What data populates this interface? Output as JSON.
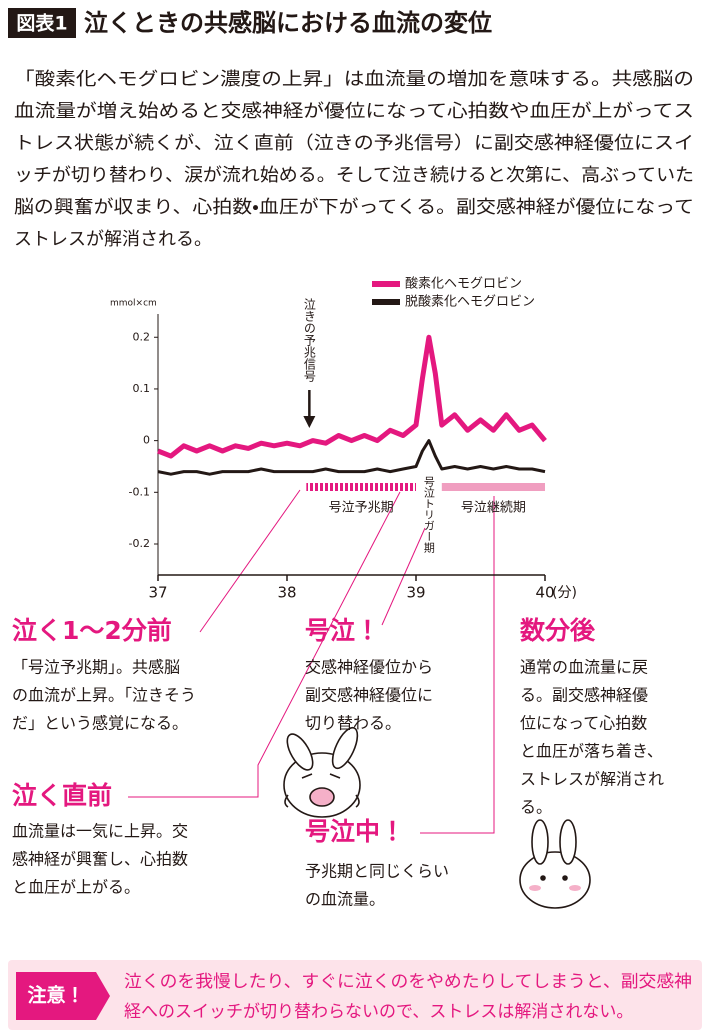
{
  "header": {
    "badge": "図表1",
    "title": "泣くときの共感脳における血流の変位"
  },
  "intro": [
    "「酸素化ヘモグロビン濃度の上昇」は血流量の増加を意味する。共感脳の",
    "血流量が増え始めると交感神経が優位になって心拍数や血圧が上がってス",
    "トレス状態が続くが、泣く直前（泣きの予兆信号）に副交感神経優位にスイ",
    "ッチが切り替わり、涙が流れ始める。そして泣き続けると次第に、高ぶっていた",
    "脳の興奮が収まり、心拍数・血圧が下がってくる。副交感神経が優位になって",
    "ストレスが解消される。"
  ],
  "chart_data": {
    "type": "line",
    "y_label": "mmol×cm",
    "x_label": "(分)",
    "x": [
      37.0,
      37.1,
      37.2,
      37.3,
      37.4,
      37.5,
      37.6,
      37.7,
      37.8,
      37.9,
      38.0,
      38.1,
      38.2,
      38.3,
      38.4,
      38.5,
      38.6,
      38.7,
      38.8,
      38.9,
      39.0,
      39.05,
      39.1,
      39.15,
      39.2,
      39.3,
      39.4,
      39.5,
      39.6,
      39.7,
      39.8,
      39.9,
      40.0
    ],
    "series": [
      {
        "name": "酸素化ヘモグロビン",
        "color": "#e4187f",
        "values": [
          -0.02,
          -0.03,
          -0.01,
          -0.02,
          -0.01,
          -0.02,
          -0.01,
          -0.015,
          -0.005,
          -0.01,
          -0.005,
          -0.01,
          0.0,
          -0.005,
          0.01,
          0.0,
          0.01,
          0.0,
          0.02,
          0.01,
          0.03,
          0.12,
          0.2,
          0.13,
          0.03,
          0.05,
          0.02,
          0.04,
          0.02,
          0.05,
          0.02,
          0.03,
          0.0
        ]
      },
      {
        "name": "脱酸素化ヘモグロビン",
        "color": "#231815",
        "values": [
          -0.06,
          -0.065,
          -0.06,
          -0.06,
          -0.065,
          -0.06,
          -0.06,
          -0.06,
          -0.055,
          -0.06,
          -0.06,
          -0.06,
          -0.06,
          -0.055,
          -0.06,
          -0.06,
          -0.06,
          -0.055,
          -0.06,
          -0.055,
          -0.05,
          -0.02,
          0.0,
          -0.03,
          -0.055,
          -0.05,
          -0.055,
          -0.05,
          -0.055,
          -0.05,
          -0.055,
          -0.055,
          -0.06
        ]
      }
    ],
    "xlim": [
      37,
      40
    ],
    "xticks": [
      37,
      38,
      39,
      40
    ],
    "ylim": [
      -0.26,
      0.245
    ],
    "yticks": [
      0.2,
      0.1,
      0,
      -0.1,
      -0.2
    ],
    "legend": "top-right",
    "periods": [
      {
        "label": "号泣予兆期",
        "x": [
          38.15,
          39.0
        ],
        "style": "striped"
      },
      {
        "label": "号泣継続期",
        "x": [
          39.2,
          40.0
        ],
        "style": "solid"
      }
    ],
    "annotations": [
      {
        "text": "泣きの予兆信号",
        "x": 38.15,
        "arrow": true
      },
      {
        "text": "号泣トリガー期",
        "x": 39.1,
        "arrow": false
      }
    ]
  },
  "sections": [
    {
      "heading": "泣く1〜2分前",
      "lines": [
        "「号泣予兆期」。共感脳",
        "の血流が上昇。「泣きそう",
        "だ」という感覚になる。"
      ]
    },
    {
      "heading": "号泣！",
      "lines": [
        "交感神経優位から",
        "副交感神経優位に",
        "切り替わる。"
      ]
    },
    {
      "heading": "数分後",
      "lines": [
        "通常の血流量に戻",
        "る。副交感神経優",
        "位になって心拍数",
        "と血圧が落ち着き、",
        "ストレスが解消され",
        "る。"
      ]
    },
    {
      "heading": "泣く直前",
      "lines": [
        "血流量は一気に上昇。交",
        "感神経が興奮し、心拍数",
        "と血圧が上がる。"
      ]
    },
    {
      "heading": "号泣中！",
      "lines": [
        "予兆期と同じくらい",
        "の血流量。"
      ]
    }
  ],
  "note": {
    "label": "注意！",
    "lines": [
      "泣くのを我慢したり、すぐに泣くのをやめたりしてしまうと、副交感神",
      "経へのスイッチが切り替わらないので、ストレスは解消されない。"
    ]
  }
}
